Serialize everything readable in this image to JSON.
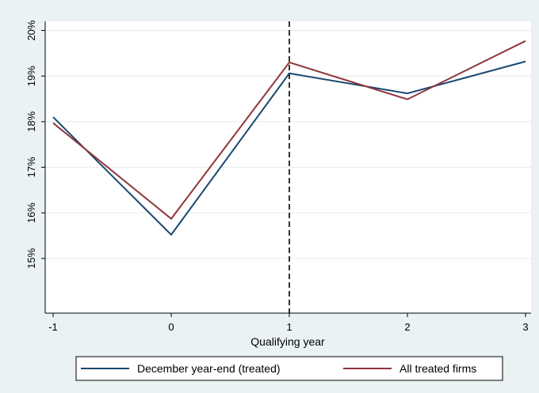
{
  "chart_data": {
    "type": "line",
    "xlabel": "Qualifying year",
    "ylabel": "",
    "x": [
      -1,
      0,
      1,
      2,
      3
    ],
    "x_ticks": [
      {
        "value": -1,
        "label": "-1"
      },
      {
        "value": 0,
        "label": "0"
      },
      {
        "value": 1,
        "label": "1"
      },
      {
        "value": 2,
        "label": "2"
      },
      {
        "value": 3,
        "label": "3"
      }
    ],
    "y_ticks": [
      {
        "value": 15,
        "label": "15%"
      },
      {
        "value": 16,
        "label": "16%"
      },
      {
        "value": 17,
        "label": "17%"
      },
      {
        "value": 18,
        "label": "18%"
      },
      {
        "value": 19,
        "label": "19%"
      },
      {
        "value": 20,
        "label": "20%"
      }
    ],
    "xlim": [
      -1,
      3
    ],
    "ylim": [
      13.8,
      20.2
    ],
    "grid": true,
    "reference_line": {
      "axis": "x",
      "value": 1,
      "style": "dashed"
    },
    "legend_position": "bottom",
    "series": [
      {
        "name": "December year-end (treated)",
        "color": "#1a476f",
        "values": [
          18.1,
          15.52,
          19.06,
          18.62,
          19.32
        ]
      },
      {
        "name": "All treated firms",
        "color": "#90353b",
        "values": [
          17.97,
          15.87,
          19.3,
          18.49,
          19.77
        ]
      }
    ]
  }
}
